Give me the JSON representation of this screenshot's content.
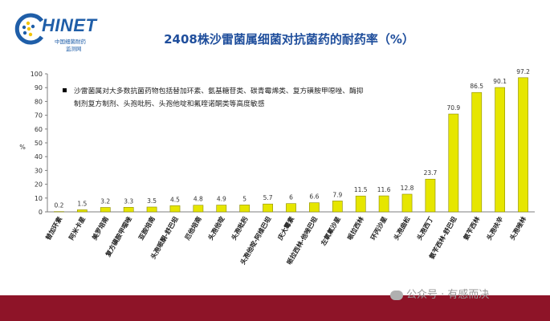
{
  "header": {
    "logo_text": "HINET",
    "logo_sub_1": "中国细菌耐药",
    "logo_sub_2": "监测网",
    "title": "2408株沙雷菌属细菌对抗菌药的耐药率（%）"
  },
  "watermark": "公众号 · 有感而决",
  "colors": {
    "bar": "#e6e600",
    "bar_stroke": "#8c8c00",
    "title": "#1f4e9c",
    "band": "#8e1428"
  },
  "chart_data": {
    "type": "bar",
    "title": "2408株沙雷菌属细菌对抗菌药的耐药率（%）",
    "ylabel": "%",
    "xlabel": "",
    "ylim": [
      0,
      100
    ],
    "yticks": [
      0,
      10,
      20,
      30,
      40,
      50,
      60,
      70,
      80,
      90,
      100
    ],
    "categories": [
      "替加环素",
      "阿米卡星",
      "美罗培南",
      "复方磺胺甲噁唑",
      "亚胺培南",
      "头孢哌酮-舒巴坦",
      "厄他培南",
      "头孢他啶",
      "头孢吡肟",
      "头孢他啶-阿维巴坦",
      "庆大霉素",
      "哌拉西林-他唑巴坦",
      "左氧氟沙星",
      "哌拉西林",
      "环丙沙星",
      "头孢曲松",
      "头孢西丁",
      "氨苄西林-舒巴坦",
      "氨苄西林",
      "头孢呋辛",
      "头孢唑林"
    ],
    "values": [
      0.2,
      1.5,
      3.2,
      3.3,
      3.5,
      4.5,
      4.8,
      4.9,
      5,
      5.7,
      6,
      6.6,
      7.9,
      11.5,
      11.6,
      12.8,
      23.7,
      70.9,
      86.5,
      90.1,
      97.2
    ],
    "annotation": "沙雷菌属对大多数抗菌药物包括替加环素、氨基糖苷类、碳青霉烯类、复方磺胺甲噁唑、酶抑制剂复方制剂、头孢吡肟、头孢他啶和氟喹诺酮类等高度敏感",
    "legend": "none",
    "grid": false
  }
}
